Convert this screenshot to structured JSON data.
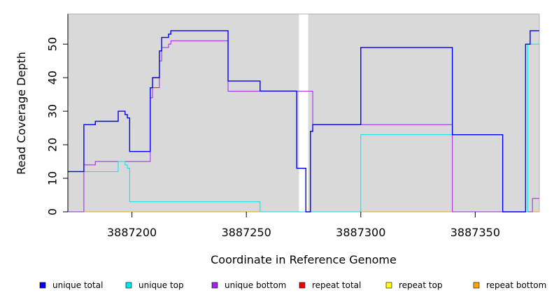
{
  "chart_data": {
    "type": "line",
    "title": "",
    "xlabel": "Coordinate in Reference Genome",
    "ylabel": "Read Coverage Depth",
    "xlim": [
      3887172,
      3887378
    ],
    "ylim": [
      0,
      59
    ],
    "x_ticks": [
      3887200,
      3887250,
      3887300,
      3887350
    ],
    "x_tick_labels": [
      "3887200",
      "3887250",
      "3887300",
      "3887350"
    ],
    "y_ticks": [
      0,
      10,
      20,
      30,
      40,
      50
    ],
    "y_tick_labels": [
      "0",
      "10",
      "20",
      "30",
      "40",
      "50"
    ],
    "background_shading": [
      [
        3887172,
        3887273
      ],
      [
        3887277,
        3887378
      ]
    ],
    "legend_position": "bottom",
    "series": [
      {
        "name": "unique total",
        "color": "#0000ee",
        "x": [
          3887172,
          3887179,
          3887184,
          3887194,
          3887197,
          3887198,
          3887199,
          3887208,
          3887209,
          3887212,
          3887213,
          3887216,
          3887217,
          3887242,
          3887256,
          3887272,
          3887276,
          3887278,
          3887279,
          3887300,
          3887340,
          3887362,
          3887372,
          3887374,
          3887376,
          3887378
        ],
        "values": [
          12,
          26,
          27,
          30,
          29,
          28,
          18,
          37,
          40,
          48,
          52,
          53,
          54,
          39,
          36,
          13,
          0,
          24,
          26,
          49,
          23,
          0,
          50,
          54,
          54,
          54
        ]
      },
      {
        "name": "unique top",
        "color": "#00e5ee",
        "x": [
          3887172,
          3887179,
          3887194,
          3887197,
          3887198,
          3887199,
          3887256,
          3887276,
          3887300,
          3887340,
          3887362,
          3887373,
          3887378
        ],
        "values": [
          12,
          12,
          15,
          14,
          13,
          3,
          0,
          0,
          23,
          23,
          0,
          50,
          50
        ]
      },
      {
        "name": "unique bottom",
        "color": "#a020f0",
        "x": [
          3887172,
          3887179,
          3887184,
          3887208,
          3887209,
          3887212,
          3887213,
          3887216,
          3887217,
          3887242,
          3887256,
          3887279,
          3887300,
          3887340,
          3887375,
          3887378
        ],
        "values": [
          0,
          14,
          15,
          34,
          37,
          45,
          49,
          50,
          51,
          36,
          36,
          26,
          26,
          0,
          4,
          4
        ]
      },
      {
        "name": "repeat total",
        "color": "#ee0000",
        "x": [
          3887172,
          3887378
        ],
        "values": [
          0,
          0
        ]
      },
      {
        "name": "repeat top",
        "color": "#ffff00",
        "x": [
          3887172,
          3887378
        ],
        "values": [
          0,
          0
        ]
      },
      {
        "name": "repeat bottom",
        "color": "#ffa500",
        "x": [
          3887172,
          3887378
        ],
        "values": [
          0,
          0
        ]
      }
    ]
  }
}
